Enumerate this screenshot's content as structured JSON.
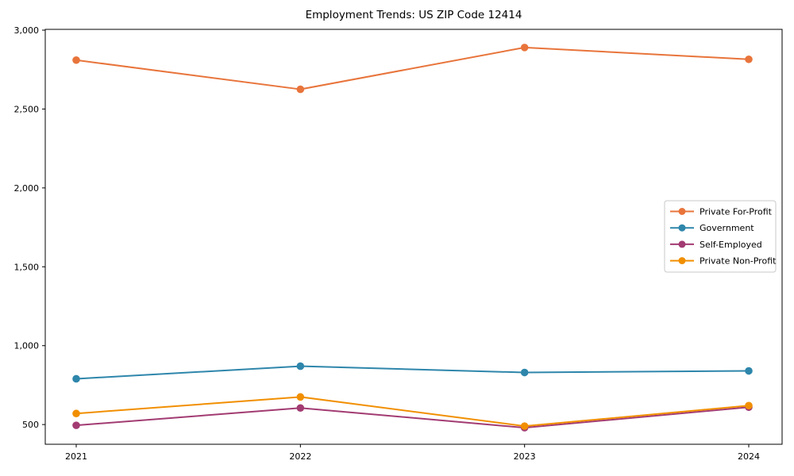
{
  "chart_data": {
    "type": "line",
    "title": "Employment Trends: US ZIP Code 12414",
    "xlabel": "",
    "ylabel": "",
    "categories": [
      "2021",
      "2022",
      "2023",
      "2024"
    ],
    "series": [
      {
        "name": "Private For-Profit",
        "color": "#E8743B",
        "values": [
          2810,
          2625,
          2890,
          2815
        ]
      },
      {
        "name": "Government",
        "color": "#2E86AB",
        "values": [
          790,
          870,
          830,
          840
        ]
      },
      {
        "name": "Self-Employed",
        "color": "#A23B72",
        "values": [
          495,
          605,
          480,
          610
        ]
      },
      {
        "name": "Private Non-Profit",
        "color": "#F18F01",
        "values": [
          570,
          675,
          490,
          620
        ]
      }
    ],
    "ylim": [
      375,
      3005
    ],
    "yticks": [
      500,
      1000,
      1500,
      2000,
      2500,
      3000
    ],
    "ytick_labels": [
      "500",
      "1,000",
      "1,500",
      "2,000",
      "2,500",
      "3,000"
    ],
    "grid": false,
    "marker": "circle",
    "legend_position": "center-right",
    "axis_color": "#000000",
    "legend_border_color": "#c9c9c9",
    "background_color": "#ffffff"
  }
}
